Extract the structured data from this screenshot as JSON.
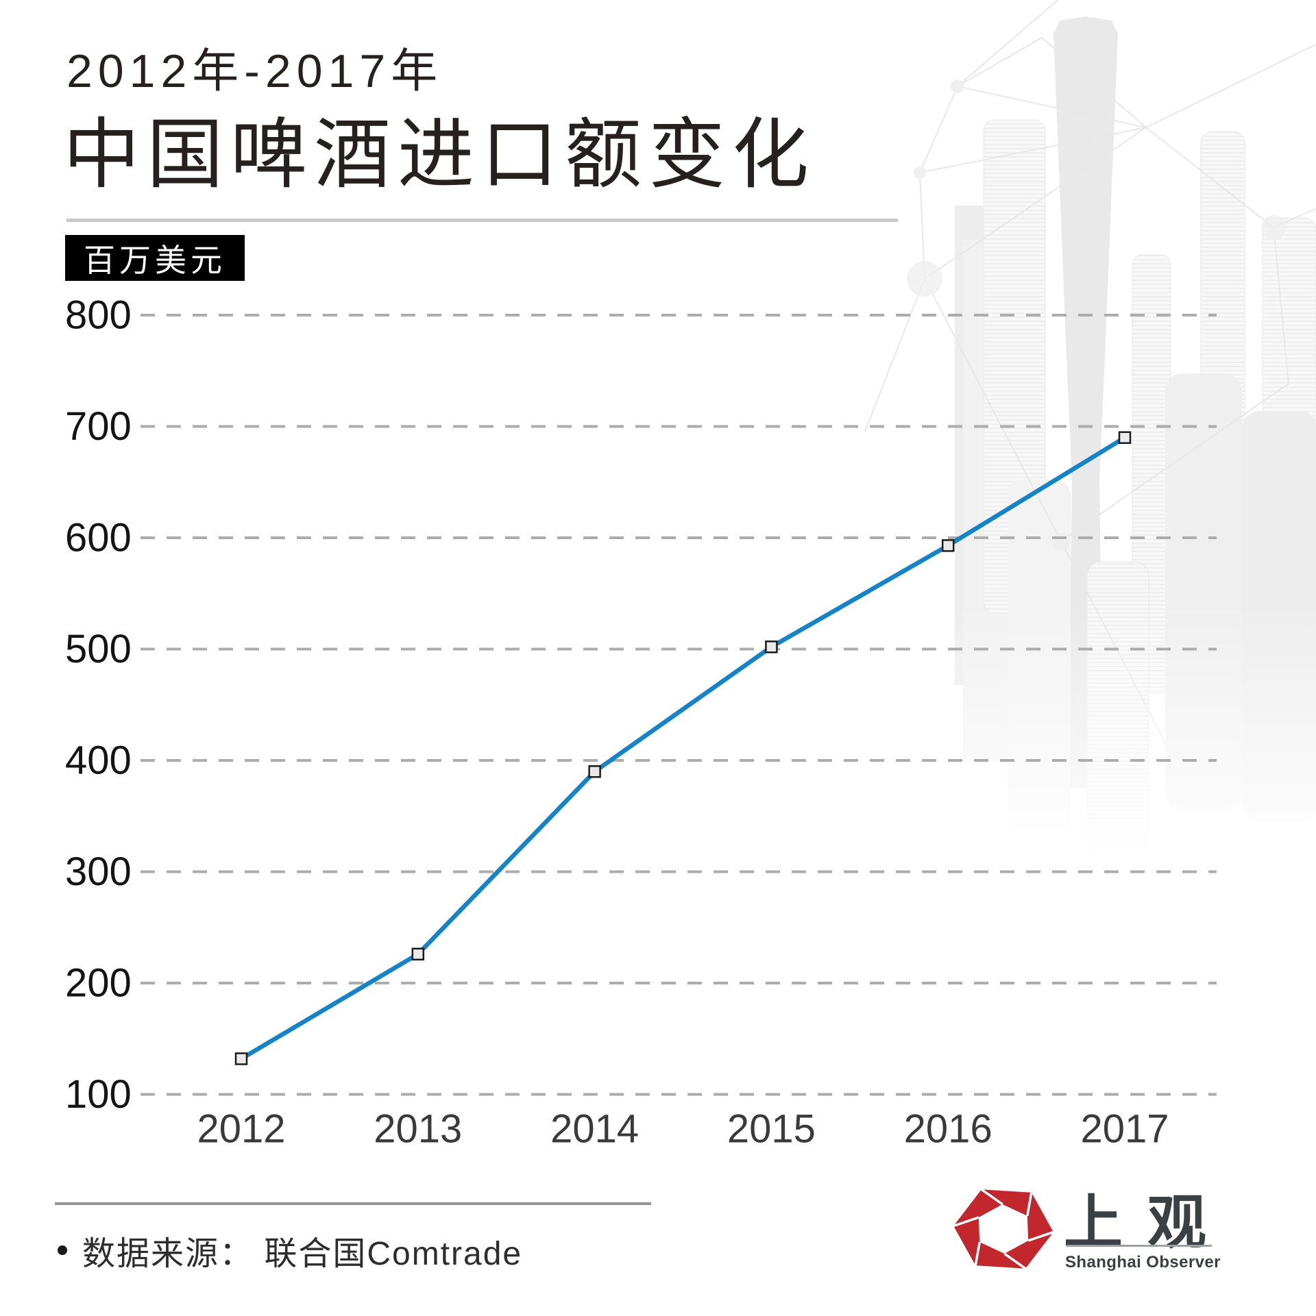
{
  "title": {
    "line1": "2012年-2017年",
    "line2": "中国啤酒进口额变化"
  },
  "unit_badge": "百万美元",
  "chart_data": {
    "type": "line",
    "x": [
      "2012",
      "2013",
      "2014",
      "2015",
      "2016",
      "2017"
    ],
    "values": [
      132,
      226,
      390,
      502,
      593,
      690
    ],
    "series_name": "中国啤酒进口额",
    "ylabel": "百万美元",
    "ylim": [
      100,
      800
    ],
    "yticks": [
      100,
      200,
      300,
      400,
      500,
      600,
      700,
      800
    ],
    "grid": "horizontal-dashed",
    "legend": "none",
    "line_color": "#1583c8",
    "marker": "square",
    "marker_fill": "#e9e9e9",
    "marker_stroke": "#1a1a1a"
  },
  "footer": {
    "source_text": "数据来源： 联合国Comtrade"
  },
  "logo": {
    "cn": "上 观",
    "en": "Shanghai Observer",
    "brand_red": "#c1272d"
  }
}
